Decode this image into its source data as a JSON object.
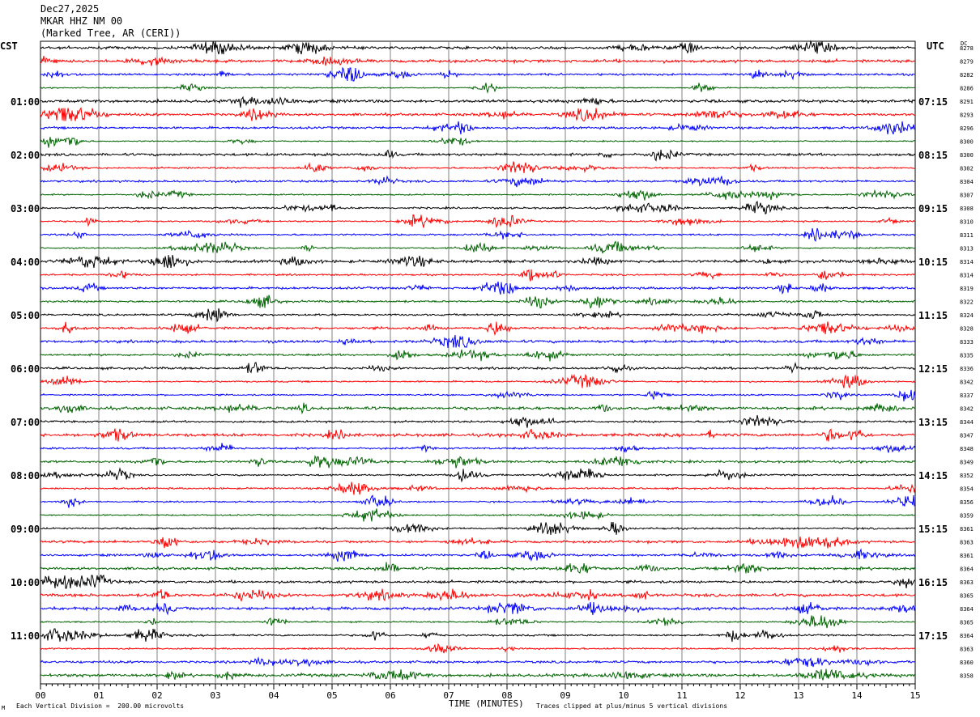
{
  "header": {
    "date": "Dec27,2025",
    "station": "MKAR HHZ NM 00",
    "location": "(Marked Tree, AR (CERI))"
  },
  "left_tz": "CST",
  "right_tz": "UTC",
  "dc_label": "DC",
  "footer": {
    "scale": "Each Vertical Division =  200.00 microvolts",
    "clip": "Traces clipped at plus/minus 5 vertical divisions",
    "xlabel": "TIME (MINUTES)",
    "corner": "M"
  },
  "chart_data": {
    "type": "line",
    "xlabel": "TIME (MINUTES)",
    "xlim": [
      0,
      15
    ],
    "xticks": [
      "00",
      "01",
      "02",
      "03",
      "04",
      "05",
      "06",
      "07",
      "08",
      "09",
      "10",
      "11",
      "12",
      "13",
      "14",
      "15"
    ],
    "trace_colors": [
      "#000000",
      "#ff0000",
      "#0000ff",
      "#006400"
    ],
    "left_hour_labels": [
      "01:00",
      "02:00",
      "03:00",
      "04:00",
      "05:00",
      "06:00",
      "07:00",
      "08:00",
      "09:00",
      "10:00",
      "11:00"
    ],
    "right_hour_labels": [
      "07:15",
      "08:15",
      "09:15",
      "10:15",
      "11:15",
      "12:15",
      "13:15",
      "14:15",
      "15:15",
      "16:15",
      "17:15"
    ],
    "dc_offsets": [
      8278,
      8279,
      8282,
      8286,
      8291,
      8293,
      8296,
      8300,
      8300,
      8302,
      8304,
      8307,
      8308,
      8310,
      8311,
      8313,
      8314,
      8314,
      8319,
      8322,
      8324,
      8328,
      8333,
      8335,
      8336,
      8342,
      8337,
      8342,
      8344,
      8347,
      8348,
      8349,
      8352,
      8354,
      8356,
      8359,
      8361,
      8363,
      8361,
      8364,
      8363,
      8365,
      8364,
      8365,
      8364,
      8363,
      8360,
      8358
    ]
  }
}
